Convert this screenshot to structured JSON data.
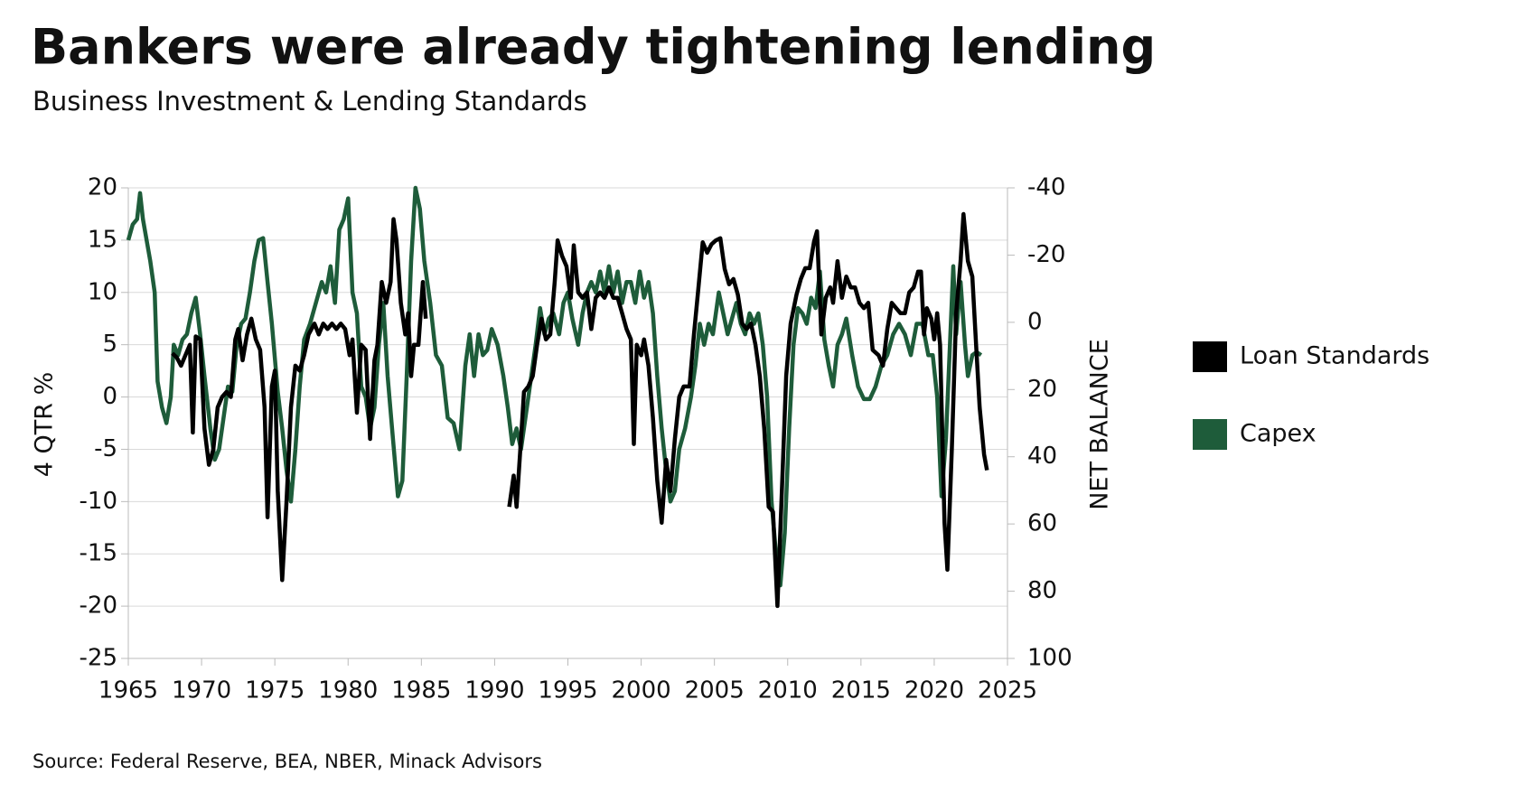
{
  "chart_data": {
    "type": "line",
    "title": "Bankers were already tightening lending",
    "subtitle": "Business Investment & Lending Standards",
    "ylabel": "4 QTR %",
    "y2label": "NET BALANCE",
    "source": "Source: Federal Reserve, BEA, NBER, Minack Advisors",
    "xlim": [
      1965,
      2025
    ],
    "xticks": [
      1965,
      1970,
      1975,
      1980,
      1985,
      1990,
      1995,
      2000,
      2005,
      2010,
      2015,
      2020,
      2025
    ],
    "ylim": [
      -25,
      20
    ],
    "yticks": [
      -25,
      -20,
      -15,
      -10,
      -5,
      0,
      5,
      10,
      15,
      20
    ],
    "y2lim": [
      100,
      -40
    ],
    "y2ticks": [
      -40,
      -20,
      0,
      20,
      40,
      60,
      80,
      100
    ],
    "grid": true,
    "legend": "right",
    "series": [
      {
        "name": "Loan Standards",
        "color": "#000000",
        "axis": "y2",
        "x": [
          1968.0,
          1968.3,
          1968.6,
          1968.9,
          1969.2,
          1969.4,
          1969.6,
          1969.9,
          1970.2,
          1970.5,
          1970.8,
          1971.1,
          1971.4,
          1971.7,
          1972.0,
          1972.3,
          1972.5,
          1972.8,
          1973.1,
          1973.4,
          1973.7,
          1974.0,
          1974.3,
          1974.5,
          1974.8,
          1975.0,
          1975.2,
          1975.5,
          1975.8,
          1976.1,
          1976.4,
          1976.7,
          1977.0,
          1977.3,
          1977.7,
          1978.0,
          1978.3,
          1978.6,
          1978.9,
          1979.2,
          1979.5,
          1979.8,
          1980.1,
          1980.3,
          1980.6,
          1980.9,
          1981.2,
          1981.5,
          1981.8,
          1982.0,
          1982.3,
          1982.6,
          1982.9,
          1983.1,
          1983.3,
          1983.6,
          1983.9,
          1984.1,
          1984.3,
          1984.5,
          1984.8,
          1985.1,
          1985.3,
          1988.0,
          1991.0,
          1991.3,
          1991.5,
          1991.8,
          1992.0,
          1992.3,
          1992.6,
          1992.9,
          1993.2,
          1993.5,
          1993.8,
          1994.1,
          1994.3,
          1994.6,
          1994.9,
          1995.2,
          1995.4,
          1995.7,
          1996.0,
          1996.3,
          1996.6,
          1996.9,
          1997.2,
          1997.5,
          1997.8,
          1998.1,
          1998.4,
          1998.7,
          1999.0,
          1999.3,
          1999.5,
          1999.7,
          2000.0,
          2000.2,
          2000.5,
          2000.8,
          2001.1,
          2001.4,
          2001.7,
          2002.0,
          2002.3,
          2002.6,
          2002.9,
          2003.3,
          2003.6,
          2003.9,
          2004.2,
          2004.5,
          2004.8,
          2005.1,
          2005.4,
          2005.7,
          2006.0,
          2006.3,
          2006.6,
          2006.9,
          2007.2,
          2007.5,
          2007.8,
          2008.1,
          2008.4,
          2008.7,
          2009.0,
          2009.3,
          2009.6,
          2009.9,
          2010.2,
          2010.6,
          2010.9,
          2011.2,
          2011.5,
          2011.8,
          2012.0,
          2012.3,
          2012.6,
          2012.9,
          2013.1,
          2013.4,
          2013.7,
          2014.0,
          2014.3,
          2014.6,
          2014.9,
          2015.2,
          2015.5,
          2015.8,
          2016.2,
          2016.5,
          2016.8,
          2017.1,
          2017.4,
          2017.7,
          2018.0,
          2018.3,
          2018.6,
          2018.9,
          2019.1,
          2019.3,
          2019.5,
          2019.8,
          2020.0,
          2020.2,
          2020.4,
          2020.7,
          2020.9,
          2021.2,
          2021.5,
          2021.8,
          2022.0,
          2022.3,
          2022.6,
          2022.9,
          2023.1,
          2023.4,
          2023.6
        ],
        "values": [
          9.2,
          10.4,
          12.9,
          9.8,
          6.7,
          32.8,
          4.2,
          5.1,
          31.6,
          42.4,
          37.8,
          25.3,
          22.2,
          20.7,
          22.2,
          5.1,
          2.0,
          11.3,
          3.6,
          -1.1,
          5.1,
          8.2,
          25.3,
          58.0,
          19.1,
          14.4,
          50.2,
          76.7,
          53.3,
          25.3,
          12.9,
          14.4,
          9.8,
          3.6,
          0.4,
          3.6,
          0.4,
          2.0,
          0.4,
          2.0,
          0.4,
          2.0,
          9.8,
          5.1,
          26.9,
          6.7,
          8.2,
          34.7,
          11.3,
          6.7,
          -12.0,
          -5.8,
          -12.0,
          -30.7,
          -24.4,
          -5.8,
          3.6,
          -2.7,
          16.0,
          6.7,
          6.7,
          -12.0,
          -1.1,
          null,
          54.9,
          45.6,
          54.9,
          34.7,
          20.7,
          19.1,
          16.0,
          6.7,
          -1.1,
          5.1,
          3.6,
          -12.0,
          -24.4,
          -19.8,
          -16.7,
          -7.3,
          -22.9,
          -8.9,
          -7.3,
          -8.9,
          2.0,
          -7.3,
          -8.9,
          -7.3,
          -10.4,
          -7.3,
          -7.3,
          -2.7,
          2.0,
          5.1,
          36.2,
          6.7,
          9.8,
          5.1,
          12.9,
          28.4,
          47.1,
          59.6,
          40.9,
          50.2,
          34.7,
          22.2,
          19.1,
          19.1,
          3.6,
          -9.8,
          -23.8,
          -20.7,
          -23.2,
          -24.4,
          -25.0,
          -15.9,
          -11.3,
          -12.9,
          -8.2,
          0.4,
          2.0,
          0.4,
          6.7,
          16.0,
          31.6,
          54.9,
          56.4,
          84.4,
          50.2,
          15.9,
          0.4,
          -8.2,
          -12.9,
          -16.1,
          -16.1,
          -24.0,
          -27.1,
          3.6,
          -7.3,
          -10.4,
          -5.8,
          -18.2,
          -7.3,
          -13.6,
          -10.4,
          -10.4,
          -5.8,
          -4.2,
          -5.8,
          8.2,
          9.8,
          12.9,
          2.0,
          -5.8,
          -4.2,
          -2.7,
          -2.7,
          -8.9,
          -10.4,
          -15.1,
          -15.1,
          3.6,
          -4.2,
          -1.1,
          5.1,
          -2.7,
          6.7,
          59.6,
          73.6,
          37.8,
          -2.7,
          -18.2,
          -32.2,
          -18.2,
          -13.6,
          9.8,
          25.3,
          39.3,
          44.0
        ]
      },
      {
        "name": "Capex",
        "color": "#1e5c3a",
        "axis": "y",
        "x": [
          1965.0,
          1965.3,
          1965.6,
          1965.8,
          1966.0,
          1966.5,
          1966.8,
          1967.0,
          1967.3,
          1967.6,
          1967.9,
          1968.1,
          1968.4,
          1968.7,
          1969.0,
          1969.3,
          1969.6,
          1969.9,
          1970.2,
          1970.6,
          1970.9,
          1971.2,
          1971.5,
          1971.8,
          1972.1,
          1972.4,
          1972.7,
          1973.0,
          1973.3,
          1973.6,
          1973.9,
          1974.2,
          1974.5,
          1974.8,
          1975.2,
          1975.5,
          1975.8,
          1976.1,
          1976.4,
          1976.7,
          1977.0,
          1977.4,
          1977.8,
          1978.2,
          1978.5,
          1978.8,
          1979.1,
          1979.4,
          1979.7,
          1980.0,
          1980.3,
          1980.6,
          1980.9,
          1981.2,
          1981.5,
          1981.8,
          1982.1,
          1982.4,
          1982.7,
          1983.0,
          1983.4,
          1983.7,
          1984.0,
          1984.3,
          1984.6,
          1984.9,
          1985.2,
          1985.6,
          1986.0,
          1986.4,
          1986.8,
          1987.2,
          1987.6,
          1988.0,
          1988.3,
          1988.6,
          1988.9,
          1989.2,
          1989.5,
          1989.8,
          1990.2,
          1990.6,
          1990.9,
          1991.2,
          1991.5,
          1991.8,
          1992.1,
          1992.5,
          1992.8,
          1993.1,
          1993.4,
          1993.7,
          1994.0,
          1994.4,
          1994.7,
          1995.0,
          1995.3,
          1995.7,
          1996.0,
          1996.3,
          1996.6,
          1996.9,
          1997.2,
          1997.5,
          1997.8,
          1998.1,
          1998.4,
          1998.7,
          1999.0,
          1999.3,
          1999.6,
          1999.9,
          2000.2,
          2000.5,
          2000.8,
          2001.1,
          2001.4,
          2001.7,
          2002.0,
          2002.3,
          2002.6,
          2003.0,
          2003.4,
          2003.7,
          2004.0,
          2004.3,
          2004.6,
          2004.9,
          2005.3,
          2005.6,
          2005.9,
          2006.2,
          2006.5,
          2006.8,
          2007.1,
          2007.4,
          2007.7,
          2008.0,
          2008.3,
          2008.6,
          2008.9,
          2009.2,
          2009.5,
          2009.8,
          2010.1,
          2010.4,
          2010.7,
          2011.0,
          2011.3,
          2011.6,
          2011.9,
          2012.2,
          2012.5,
          2012.8,
          2013.1,
          2013.4,
          2013.7,
          2014.0,
          2014.4,
          2014.8,
          2015.2,
          2015.6,
          2016.0,
          2016.4,
          2016.8,
          2017.2,
          2017.6,
          2018.0,
          2018.4,
          2018.8,
          2019.2,
          2019.6,
          2019.9,
          2020.2,
          2020.5,
          2020.8,
          2021.1,
          2021.3,
          2021.5,
          2021.8,
          2022.1,
          2022.3,
          2022.6,
          2022.9,
          2023.2
        ],
        "values": [
          15,
          16.5,
          17,
          19.5,
          17,
          13,
          10,
          1.5,
          -1,
          -2.5,
          0,
          5,
          4,
          5.5,
          6,
          8,
          9.5,
          6,
          2,
          -3,
          -6,
          -5,
          -2,
          1,
          0.5,
          5,
          7,
          7.5,
          10,
          13,
          15,
          15.2,
          11,
          7,
          0.5,
          -3,
          -7,
          -10,
          -5,
          1,
          5.5,
          7,
          9,
          11,
          10,
          12.5,
          9,
          16,
          17,
          19,
          10,
          8,
          1,
          0,
          -3,
          -1,
          5,
          9,
          2,
          -3,
          -9.5,
          -8,
          2,
          13,
          20,
          18,
          13,
          9,
          4,
          3,
          -2,
          -2.5,
          -5,
          3,
          6,
          2,
          6,
          4,
          4.5,
          6.5,
          5,
          2,
          -1,
          -4.5,
          -3,
          -5,
          -2,
          2,
          5,
          8.5,
          6,
          7.5,
          8,
          6,
          9,
          10,
          7.5,
          5,
          8,
          10,
          11,
          10,
          12,
          10,
          12.5,
          10,
          12,
          9,
          11,
          11,
          9,
          12,
          9.5,
          11,
          8,
          2,
          -3,
          -7,
          -10,
          -9,
          -5,
          -3,
          0,
          3,
          7,
          5,
          7,
          6,
          10,
          8,
          6,
          7.5,
          9,
          7,
          6,
          8,
          7,
          8,
          5,
          0,
          -10,
          -15,
          -18,
          -13,
          -3,
          5,
          8.5,
          8,
          7,
          9.5,
          8.5,
          12,
          5.5,
          3,
          1,
          5,
          6,
          7.5,
          4,
          1,
          -0.2,
          -0.2,
          1,
          3,
          4,
          6,
          7,
          6,
          4,
          7,
          7,
          4,
          4,
          0,
          -9.5,
          -4,
          6,
          12.5,
          6,
          11,
          5,
          2,
          4,
          4.3,
          4
        ]
      }
    ]
  }
}
